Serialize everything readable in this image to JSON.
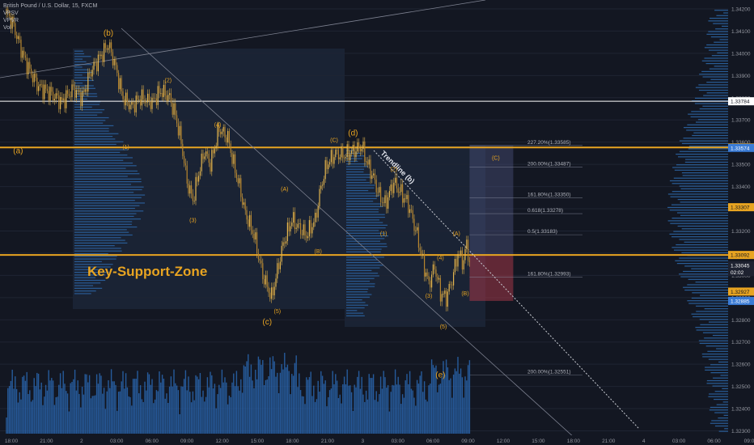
{
  "chart_data": {
    "type": "candlestick",
    "instrument": "British Pound / U.S. Dollar, 15, FXCM",
    "indicators": [
      "VPSV",
      "VPVR",
      "Vol"
    ],
    "y_axis": {
      "ticks": [
        1.342,
        1.341,
        1.34,
        1.339,
        1.338,
        1.337,
        1.336,
        1.335,
        1.334,
        1.333,
        1.332,
        1.331,
        1.33,
        1.329,
        1.328,
        1.327,
        1.326,
        1.325,
        1.324,
        1.323
      ],
      "tick_labels": [
        "1.34200",
        "1.34100",
        "1.34000",
        "1.33900",
        "1.33800",
        "1.33700",
        "1.33600",
        "1.33500",
        "1.33400",
        "1.33300",
        "1.33200",
        "1.33100",
        "1.33000",
        "1.32900",
        "1.32800",
        "1.32700",
        "1.32600",
        "1.32500",
        "1.32400",
        "1.32300"
      ],
      "range": [
        1.3228,
        1.3424
      ]
    },
    "x_axis": {
      "tick_labels": [
        "18:00",
        "21:00",
        "2",
        "03:00",
        "06:00",
        "09:00",
        "12:00",
        "15:00",
        "18:00",
        "21:00",
        "3",
        "03:00",
        "06:00",
        "09:00",
        "12:00",
        "15:00",
        "18:00",
        "21:00",
        "4",
        "03:00",
        "06:00",
        "09:0"
      ]
    },
    "price_tags": [
      {
        "text": "1.33784",
        "value": 1.33784,
        "color": "#ffffff",
        "text_color": "#131722"
      },
      {
        "text": "1.33576",
        "value": 1.33576,
        "color": "#e8a421",
        "text_color": "#131722"
      },
      {
        "text": "1.33574",
        "value": 1.33574,
        "color": "#3a7bd5",
        "text_color": "#ffffff"
      },
      {
        "text": "1.33307",
        "value": 1.33307,
        "color": "#e8a421",
        "text_color": "#131722"
      },
      {
        "text": "1.33092",
        "value": 1.33092,
        "color": "#e8a421",
        "text_color": "#131722"
      },
      {
        "text": "1.33045",
        "value": 1.33045,
        "color": "#1e2230",
        "text_color": "#ffffff"
      },
      {
        "text": "02:02",
        "value": 1.33015,
        "color": "#1e2230",
        "text_color": "#ffffff"
      },
      {
        "text": "1.32927",
        "value": 1.32927,
        "color": "#e8a421",
        "text_color": "#131722"
      },
      {
        "text": "1.32885",
        "value": 1.32885,
        "color": "#3a7bd5",
        "text_color": "#ffffff"
      }
    ],
    "horizontal_lines": [
      {
        "value": 1.33784,
        "color": "#ffffff",
        "width": 1
      },
      {
        "value": 1.33576,
        "color": "#e8a421",
        "width": 2
      },
      {
        "value": 1.33092,
        "color": "#e8a421",
        "width": 2
      }
    ],
    "zone_label": "Key-Support-Zone",
    "wave_labels": [
      {
        "text": "(b)",
        "t": 70,
        "v": 1.3408,
        "size": 10
      },
      {
        "text": "(a)",
        "t": 8,
        "v": 1.3355,
        "size": 10
      },
      {
        "text": "(1)",
        "t": 82,
        "v": 1.3357,
        "size": 7
      },
      {
        "text": "(2)",
        "t": 111,
        "v": 1.3387,
        "size": 7
      },
      {
        "text": "(3)",
        "t": 128,
        "v": 1.3324,
        "size": 7
      },
      {
        "text": "(4)",
        "t": 145,
        "v": 1.3367,
        "size": 7
      },
      {
        "text": "(A)",
        "t": 191,
        "v": 1.3338,
        "size": 7
      },
      {
        "text": "(B)",
        "t": 214,
        "v": 1.331,
        "size": 7
      },
      {
        "text": "(5)",
        "t": 186,
        "v": 1.3283,
        "size": 7
      },
      {
        "text": "(c)",
        "t": 179,
        "v": 1.3278,
        "size": 10
      },
      {
        "text": "(C)",
        "t": 225,
        "v": 1.336,
        "size": 7
      },
      {
        "text": "(d)",
        "t": 238,
        "v": 1.3363,
        "size": 10
      },
      {
        "text": "(1)",
        "t": 259,
        "v": 1.3318,
        "size": 7
      },
      {
        "text": "(2)",
        "t": 266,
        "v": 1.3347,
        "size": 7
      },
      {
        "text": "(3)",
        "t": 290,
        "v": 1.329,
        "size": 7
      },
      {
        "text": "(4)",
        "t": 298,
        "v": 1.3307,
        "size": 7
      },
      {
        "text": "(5)",
        "t": 300,
        "v": 1.3276,
        "size": 7
      },
      {
        "text": "(A)",
        "t": 309,
        "v": 1.3318,
        "size": 7
      },
      {
        "text": "(B)",
        "t": 315,
        "v": 1.3291,
        "size": 7
      },
      {
        "text": "(C)",
        "t": 336,
        "v": 1.3352,
        "size": 7
      },
      {
        "text": "(e)",
        "t": 298,
        "v": 1.3254,
        "size": 10
      }
    ],
    "trendline_label": "Trendline (b)",
    "fib_levels": [
      {
        "text": "227.20%(1.33585)",
        "value": 1.33585
      },
      {
        "text": "200.00%(1.33487)",
        "value": 1.33487
      },
      {
        "text": "161.80%(1.33350)",
        "value": 1.3335
      },
      {
        "text": "0.618(1.33278)",
        "value": 1.33278
      },
      {
        "text": "0.5(1.33183)",
        "value": 1.33183
      },
      {
        "text": "161.80%(1.32993)",
        "value": 1.32993
      },
      {
        "text": "200.00%(1.32551)",
        "value": 1.32551
      }
    ],
    "position_box": {
      "entry": 1.33092,
      "target": 1.33585,
      "stop": 1.32885,
      "t_start": 318,
      "t_end": 348
    },
    "price_path": [
      [
        0,
        1.3418
      ],
      [
        4,
        1.3414
      ],
      [
        8,
        1.3406
      ],
      [
        12,
        1.3398
      ],
      [
        16,
        1.3392
      ],
      [
        22,
        1.3385
      ],
      [
        30,
        1.3382
      ],
      [
        38,
        1.3378
      ],
      [
        46,
        1.3384
      ],
      [
        52,
        1.338
      ],
      [
        58,
        1.3392
      ],
      [
        64,
        1.3398
      ],
      [
        70,
        1.3404
      ],
      [
        74,
        1.3396
      ],
      [
        80,
        1.338
      ],
      [
        86,
        1.3376
      ],
      [
        92,
        1.338
      ],
      [
        100,
        1.3378
      ],
      [
        106,
        1.3383
      ],
      [
        112,
        1.338
      ],
      [
        116,
        1.3372
      ],
      [
        120,
        1.336
      ],
      [
        124,
        1.3342
      ],
      [
        128,
        1.3334
      ],
      [
        132,
        1.3346
      ],
      [
        136,
        1.3356
      ],
      [
        140,
        1.335
      ],
      [
        146,
        1.3366
      ],
      [
        152,
        1.3362
      ],
      [
        156,
        1.335
      ],
      [
        160,
        1.334
      ],
      [
        164,
        1.3328
      ],
      [
        170,
        1.3318
      ],
      [
        176,
        1.33
      ],
      [
        182,
        1.329
      ],
      [
        186,
        1.3302
      ],
      [
        190,
        1.3314
      ],
      [
        196,
        1.3325
      ],
      [
        200,
        1.3322
      ],
      [
        206,
        1.3318
      ],
      [
        212,
        1.3325
      ],
      [
        216,
        1.334
      ],
      [
        220,
        1.335
      ],
      [
        226,
        1.3355
      ],
      [
        232,
        1.3354
      ],
      [
        238,
        1.3356
      ],
      [
        244,
        1.3358
      ],
      [
        248,
        1.335
      ],
      [
        252,
        1.3344
      ],
      [
        256,
        1.3336
      ],
      [
        260,
        1.3332
      ],
      [
        266,
        1.3342
      ],
      [
        270,
        1.3338
      ],
      [
        276,
        1.3332
      ],
      [
        282,
        1.3318
      ],
      [
        286,
        1.3306
      ],
      [
        290,
        1.3296
      ],
      [
        294,
        1.3304
      ],
      [
        298,
        1.3292
      ],
      [
        302,
        1.329
      ],
      [
        306,
        1.3298
      ],
      [
        310,
        1.331
      ],
      [
        314,
        1.3306
      ],
      [
        316,
        1.3315
      ],
      [
        318,
        1.3305
      ]
    ]
  }
}
